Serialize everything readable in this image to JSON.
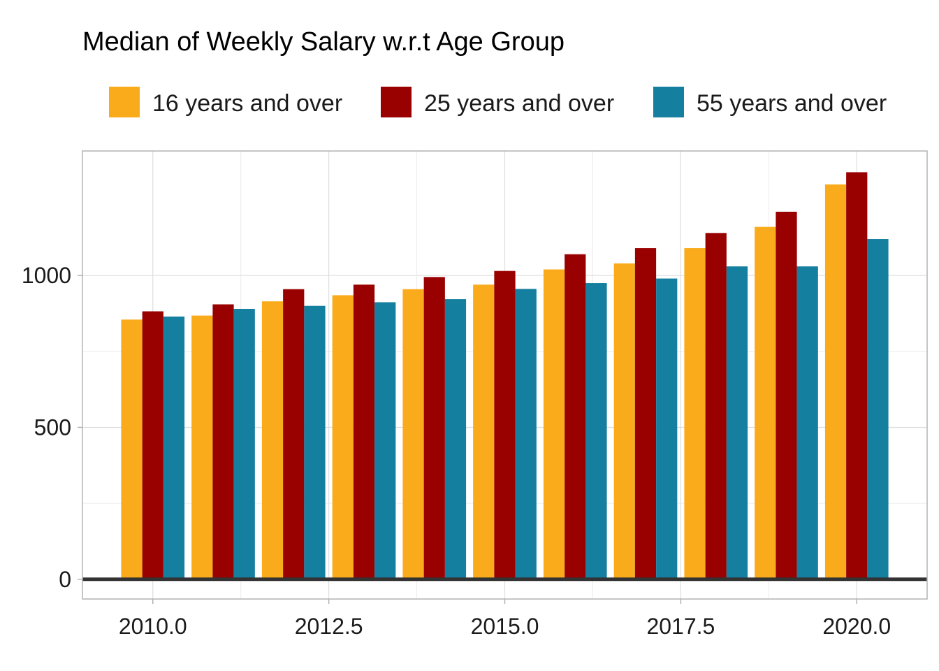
{
  "chart_data": {
    "type": "bar",
    "title": "Median of Weekly Salary w.r.t Age Group",
    "xlabel": "",
    "ylabel": "",
    "x": [
      2010,
      2011,
      2012,
      2013,
      2014,
      2015,
      2016,
      2017,
      2018,
      2019,
      2020
    ],
    "series": [
      {
        "name": "16 years and over",
        "color": "#F9AB1B",
        "values": [
          855,
          868,
          915,
          935,
          955,
          970,
          1020,
          1040,
          1090,
          1160,
          1300
        ]
      },
      {
        "name": "25 years and over",
        "color": "#990000",
        "values": [
          882,
          905,
          955,
          970,
          995,
          1015,
          1070,
          1090,
          1140,
          1210,
          1340
        ]
      },
      {
        "name": "55 years and over",
        "color": "#157FA0",
        "values": [
          865,
          890,
          900,
          912,
          922,
          956,
          975,
          990,
          1030,
          1030,
          1120
        ]
      }
    ],
    "xlim": [
      2009,
      2021
    ],
    "ylim": [
      -65,
      1410
    ],
    "xticks": [
      2010,
      2012.5,
      2015,
      2017.5,
      2020
    ],
    "xtick_labels": [
      "2010.0",
      "2012.5",
      "2015.0",
      "2017.5",
      "2020.0"
    ],
    "yticks": [
      0,
      500,
      1000
    ],
    "ytick_labels": [
      "0",
      "500",
      "1000"
    ],
    "grid": true,
    "legend_position": "top"
  }
}
